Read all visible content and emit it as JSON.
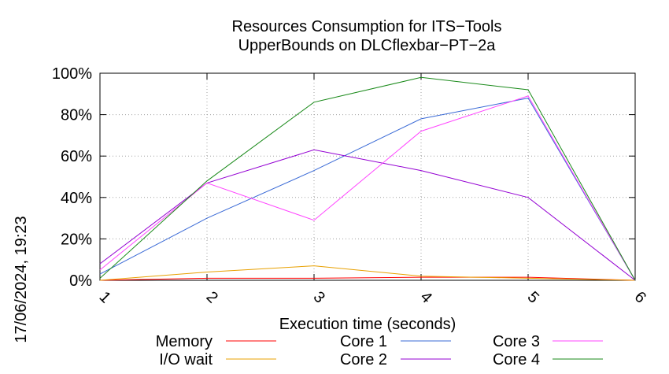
{
  "chart_data": {
    "type": "line",
    "title": [
      "Resources Consumption for ITS−Tools",
      "UpperBounds on DLCflexbar−PT−2a"
    ],
    "xlabel": "Execution time (seconds)",
    "ylabel": "",
    "side_label": "17/06/2024, 19:23",
    "xlim": [
      1,
      6
    ],
    "ylim": [
      0,
      100
    ],
    "x_ticks": [
      "1",
      "2",
      "3",
      "4",
      "5",
      "6"
    ],
    "y_ticks": [
      "0%",
      "20%",
      "40%",
      "60%",
      "80%",
      "100%"
    ],
    "grid": true,
    "legend_position": "bottom",
    "x": [
      1,
      2,
      3,
      4,
      5,
      6
    ],
    "series": [
      {
        "name": "Memory",
        "color": "#ff0000",
        "values": [
          0,
          1,
          1,
          1.5,
          1.5,
          0
        ]
      },
      {
        "name": "I/O wait",
        "color": "#e8a000",
        "values": [
          0,
          4,
          7,
          2,
          1,
          0
        ]
      },
      {
        "name": "Core 1",
        "color": "#3a6ad6",
        "values": [
          3,
          30,
          53,
          78,
          88,
          0
        ]
      },
      {
        "name": "Core 2",
        "color": "#9400d3",
        "values": [
          8,
          47,
          63,
          53,
          40,
          0
        ]
      },
      {
        "name": "Core 3",
        "color": "#ff44ff",
        "values": [
          5,
          47,
          29,
          72,
          89,
          0
        ]
      },
      {
        "name": "Core 4",
        "color": "#1a8a1a",
        "values": [
          1,
          48,
          86,
          98,
          92,
          0
        ]
      }
    ]
  }
}
